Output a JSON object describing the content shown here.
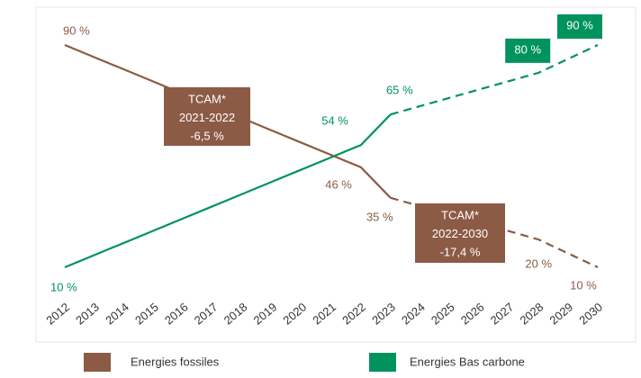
{
  "chart_data": {
    "type": "line",
    "categories": [
      "2012",
      "2013",
      "2014",
      "2015",
      "2016",
      "2017",
      "2018",
      "2019",
      "2020",
      "2021",
      "2022",
      "2023",
      "2024",
      "2025",
      "2026",
      "2027",
      "2028",
      "2029",
      "2030"
    ],
    "dashed_from": "2023",
    "ylim": [
      0,
      100
    ],
    "series": [
      {
        "name": "Energies fossiles",
        "color": "#8c5b45",
        "values": [
          90,
          85.6,
          81.2,
          76.8,
          72.4,
          68,
          63.6,
          59.2,
          54.8,
          50.4,
          46,
          35,
          32,
          29,
          26,
          23,
          20,
          15,
          10
        ],
        "value_labels": [
          "90 %",
          null,
          null,
          null,
          null,
          null,
          null,
          null,
          null,
          null,
          "46 %",
          "35 %",
          null,
          null,
          null,
          null,
          "20 %",
          null,
          "10 %"
        ]
      },
      {
        "name": "Energies Bas carbone",
        "color": "#00935e",
        "values": [
          10,
          14.4,
          18.8,
          23.2,
          27.6,
          32,
          36.4,
          40.8,
          45.2,
          49.6,
          54,
          65,
          68,
          71,
          74,
          77,
          80,
          85,
          90
        ],
        "value_labels": [
          "10 %",
          null,
          null,
          null,
          null,
          null,
          null,
          null,
          null,
          null,
          "54 %",
          "65 %",
          null,
          null,
          null,
          null,
          "80 %",
          null,
          "90 %"
        ]
      }
    ],
    "annotations": [
      {
        "lines": [
          "TCAM*",
          "2021-2022",
          "-6,5 %"
        ]
      },
      {
        "lines": [
          "TCAM*",
          "2022-2030",
          "-17,4 %"
        ]
      }
    ]
  }
}
